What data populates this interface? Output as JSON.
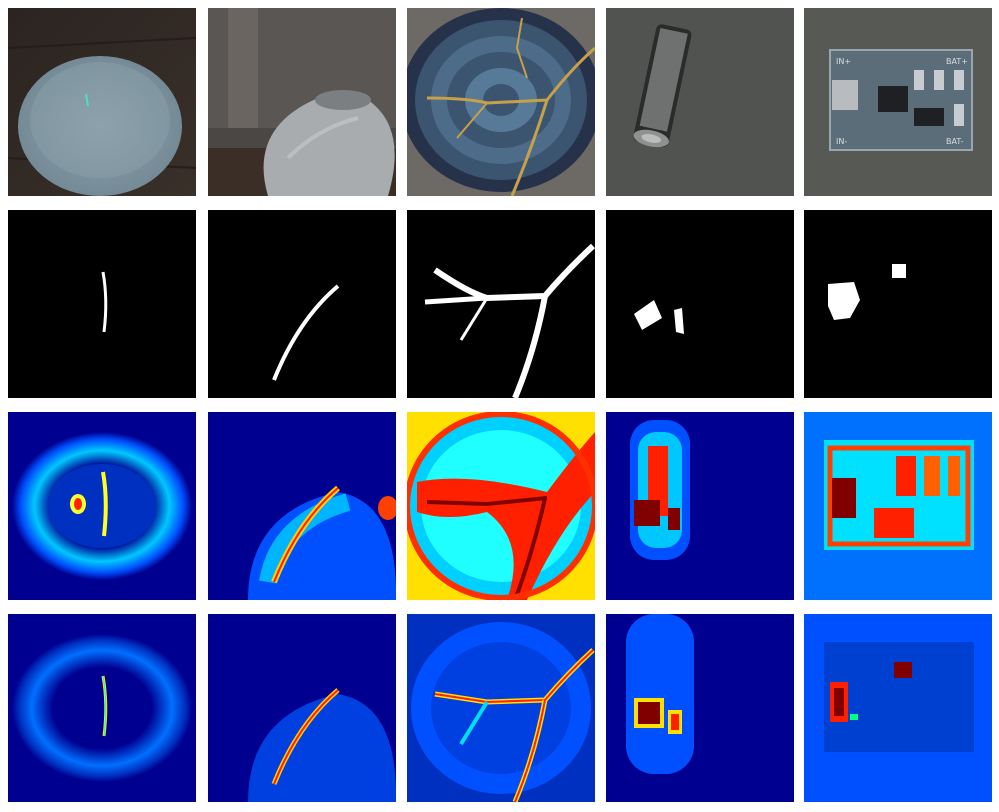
{
  "figure": {
    "rows": [
      {
        "kind": "input-image",
        "cells": [
          {
            "subject": "ceramic bowl on wooden table",
            "icon": "bowl-photo"
          },
          {
            "subject": "white ceramic vase",
            "icon": "vase-photo"
          },
          {
            "subject": "blue patterned plate with gold kintsugi cracks",
            "icon": "plate-photo"
          },
          {
            "subject": "AA battery on gray background",
            "icon": "battery-photo"
          },
          {
            "subject": "circuit board module",
            "icon": "pcb-photo",
            "board_labels": [
              "IN+",
              "BAT+",
              "BAT-",
              "IN-"
            ]
          }
        ]
      },
      {
        "kind": "ground-truth-mask",
        "colors": {
          "background": "#000000",
          "defect": "#ffffff"
        }
      },
      {
        "kind": "anomaly-heatmap-a",
        "colormap": [
          "#000090",
          "#0050ff",
          "#00e0ff",
          "#ffff00",
          "#ff2000",
          "#800000"
        ]
      },
      {
        "kind": "anomaly-heatmap-b",
        "colormap": [
          "#000090",
          "#0050ff",
          "#00e0ff",
          "#ffff00",
          "#ff2000",
          "#800000"
        ]
      }
    ],
    "columns": 5
  }
}
